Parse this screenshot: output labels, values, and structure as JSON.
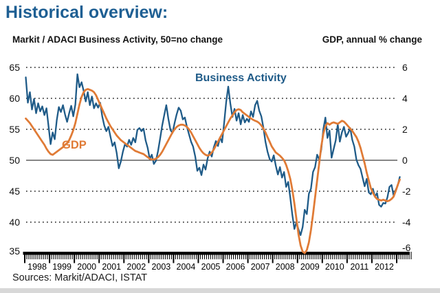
{
  "title": "Historical overview:",
  "left_axis_title": "Markit / ADACI  Business Activity, 50=no change",
  "right_axis_title": "GDP, annual % change",
  "series_labels": {
    "business_activity": "Business Activity",
    "gdp": "GDP"
  },
  "sources": "Sources: Markit/ADACI, ISTAT",
  "colors": {
    "business_activity": "#1f5b88",
    "gdp": "#e07b36",
    "title": "#1e5f93",
    "grid": "#1f1f1f",
    "zero_line": "#3d3d3d",
    "axis": "#000000",
    "footer_strip": "#d8d8d8"
  },
  "chart_data": {
    "type": "line",
    "title": "Historical overview",
    "xlabel": "",
    "ylabel_left": "Markit / ADACI Business Activity (50 = no change)",
    "ylabel_right": "GDP, annual % change",
    "x_frequency": "monthly",
    "x_start": "1998-01",
    "x_end": "2013-02",
    "years": [
      "1998",
      "1999",
      "2000",
      "2001",
      "2002",
      "2003",
      "2004",
      "2005",
      "2006",
      "2007",
      "2008",
      "2009",
      "2010",
      "2011",
      "2012"
    ],
    "left_axis": {
      "ticks": [
        65,
        60,
        55,
        50,
        45,
        40,
        35
      ],
      "range": [
        35,
        65
      ]
    },
    "right_axis": {
      "ticks": [
        6,
        4,
        2,
        0,
        -2,
        -4,
        -6
      ],
      "range": [
        -6,
        6
      ]
    },
    "gridlines": {
      "dotted_left_values": [
        65,
        60,
        55,
        45,
        40
      ],
      "solid_left_value": 50,
      "style": "dotted"
    },
    "legend_position": "annotations-on-chart",
    "series": [
      {
        "name": "Business Activity",
        "axis": "left",
        "values": [
          63.4,
          59.3,
          61.0,
          58.2,
          59.9,
          57.6,
          59.2,
          57.9,
          58.7,
          57.3,
          58.4,
          55.5,
          52.6,
          54.5,
          53.4,
          56.5,
          58.6,
          57.8,
          58.9,
          57.4,
          56.2,
          57.6,
          58.8,
          57.1,
          59.0,
          63.9,
          61.8,
          62.6,
          61.2,
          59.5,
          61.0,
          58.9,
          60.3,
          58.4,
          59.2,
          58.5,
          59.3,
          57.1,
          55.6,
          54.7,
          55.4,
          53.8,
          52.3,
          52.9,
          51.2,
          48.7,
          49.8,
          51.4,
          52.6,
          52.2,
          53.3,
          52.5,
          53.6,
          52.9,
          54.9,
          55.2,
          54.7,
          55.1,
          53.2,
          52.0,
          50.2,
          50.9,
          49.4,
          49.9,
          51.5,
          53.5,
          55.6,
          57.3,
          58.9,
          56.7,
          54.9,
          54.4,
          56.0,
          57.4,
          58.5,
          58.0,
          56.6,
          56.9,
          55.4,
          54.2,
          53.0,
          52.2,
          50.6,
          48.3,
          48.8,
          47.6,
          49.3,
          48.5,
          50.3,
          51.4,
          50.6,
          52.1,
          53.1,
          52.3,
          53.7,
          52.9,
          56.0,
          59.4,
          61.9,
          59.2,
          57.0,
          58.3,
          56.4,
          57.6,
          55.8,
          57.3,
          56.1,
          56.7,
          56.2,
          57.9,
          57.0,
          58.9,
          59.6,
          58.0,
          57.1,
          55.3,
          53.0,
          51.4,
          50.2,
          49.8,
          50.8,
          49.1,
          47.7,
          48.9,
          47.2,
          48.1,
          45.7,
          46.5,
          44.0,
          41.2,
          38.9,
          40.0,
          38.8,
          37.9,
          39.2,
          42.0,
          41.3,
          44.6,
          45.4,
          48.1,
          48.9,
          50.9,
          50.1,
          51.7,
          55.0,
          56.9,
          53.6,
          54.8,
          50.4,
          51.8,
          53.2,
          55.8,
          53.0,
          54.5,
          55.4,
          53.8,
          54.4,
          55.2,
          53.3,
          52.2,
          50.1,
          49.2,
          48.6,
          47.2,
          45.8,
          47.0,
          44.8,
          44.5,
          45.4,
          44.1,
          44.7,
          42.8,
          42.5,
          43.1,
          43.0,
          44.0,
          45.7,
          46.0,
          44.3,
          45.2,
          45.9,
          47.3
        ]
      },
      {
        "name": "GDP",
        "axis": "right",
        "values": [
          2.7,
          2.55,
          2.4,
          2.2,
          2.0,
          1.8,
          1.6,
          1.4,
          1.2,
          1.0,
          0.75,
          0.55,
          0.4,
          0.35,
          0.45,
          0.55,
          0.65,
          0.75,
          0.85,
          1.0,
          1.1,
          1.3,
          1.6,
          1.95,
          2.4,
          3.0,
          3.6,
          4.1,
          4.4,
          4.55,
          4.6,
          4.55,
          4.5,
          4.4,
          4.2,
          3.9,
          3.6,
          3.3,
          3.0,
          2.7,
          2.45,
          2.2,
          2.0,
          1.8,
          1.6,
          1.45,
          1.3,
          1.2,
          1.1,
          1.0,
          0.9,
          0.8,
          0.7,
          0.6,
          0.55,
          0.5,
          0.45,
          0.4,
          0.3,
          0.2,
          0.1,
          0.05,
          0.05,
          0.1,
          0.2,
          0.35,
          0.55,
          0.8,
          1.05,
          1.3,
          1.55,
          1.8,
          2.0,
          2.15,
          2.25,
          2.3,
          2.3,
          2.25,
          2.15,
          2.0,
          1.8,
          1.55,
          1.3,
          1.05,
          0.8,
          0.6,
          0.45,
          0.35,
          0.3,
          0.35,
          0.5,
          0.7,
          0.95,
          1.2,
          1.45,
          1.7,
          1.95,
          2.2,
          2.45,
          2.7,
          2.9,
          3.1,
          3.25,
          3.3,
          3.25,
          3.1,
          3.0,
          2.9,
          2.8,
          2.7,
          2.62,
          2.55,
          2.5,
          2.4,
          2.25,
          2.05,
          1.8,
          1.5,
          1.2,
          0.9,
          0.7,
          0.5,
          0.4,
          0.3,
          0.15,
          0.0,
          -0.3,
          -0.7,
          -1.2,
          -1.9,
          -2.8,
          -3.8,
          -4.8,
          -5.5,
          -5.9,
          -6.0,
          -5.8,
          -5.3,
          -4.5,
          -3.5,
          -2.4,
          -1.3,
          -0.2,
          0.9,
          1.7,
          2.2,
          2.4,
          2.3,
          2.4,
          2.45,
          2.4,
          2.35,
          2.45,
          2.55,
          2.5,
          2.35,
          2.2,
          2.05,
          1.9,
          1.7,
          1.5,
          1.2,
          0.8,
          0.3,
          -0.2,
          -0.8,
          -1.3,
          -1.8,
          -2.1,
          -2.35,
          -2.5,
          -2.55,
          -2.6,
          -2.55,
          -2.6,
          -2.65,
          -2.6,
          -2.5,
          -2.35,
          -2.0,
          -1.6,
          -1.25
        ]
      }
    ]
  }
}
